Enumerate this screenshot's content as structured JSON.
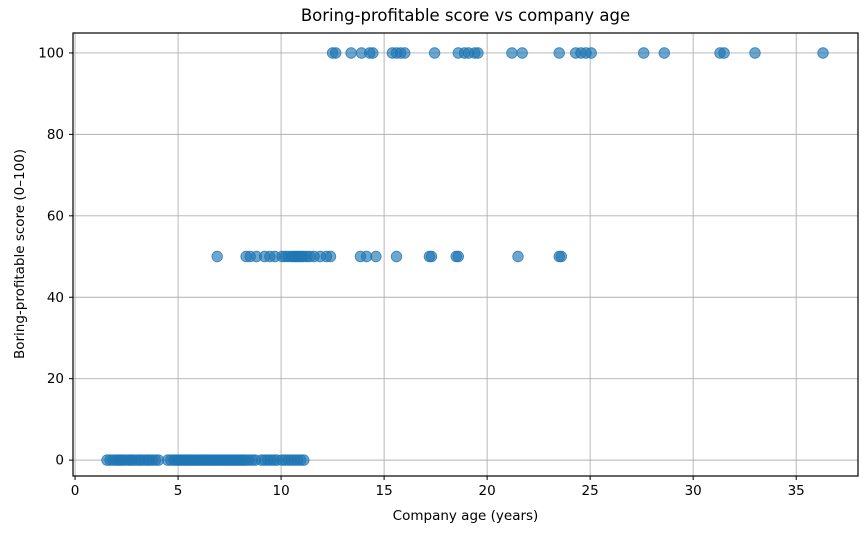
{
  "chart_data": {
    "type": "scatter",
    "title": "Boring-profitable score vs company age",
    "xlabel": "Company age (years)",
    "ylabel": "Boring-profitable score (0–100)",
    "xlim": [
      -0.1,
      38.0
    ],
    "ylim": [
      -3.9,
      104.9
    ],
    "xticks": [
      0,
      5,
      10,
      15,
      20,
      25,
      30,
      35
    ],
    "yticks": [
      0,
      20,
      40,
      60,
      80,
      100
    ],
    "grid": true,
    "legend": "none",
    "marker_color": "#1f77b4",
    "marker_alpha": 0.65,
    "marker_radius": 5.3,
    "grid_color": "#b0b0b0",
    "spine_color": "#000000",
    "series": [
      {
        "name": "score-0",
        "y": 0,
        "x": [
          1.55,
          1.7,
          1.85,
          2.0,
          2.1,
          2.2,
          2.3,
          2.45,
          2.6,
          2.7,
          2.8,
          2.95,
          3.1,
          3.2,
          3.35,
          3.5,
          3.6,
          3.75,
          3.9,
          4.05,
          4.5,
          4.65,
          4.8,
          4.9,
          5.0,
          5.1,
          5.2,
          5.3,
          5.4,
          5.5,
          5.6,
          5.7,
          5.8,
          5.9,
          6.0,
          6.1,
          6.2,
          6.3,
          6.4,
          6.5,
          6.6,
          6.7,
          6.8,
          6.9,
          7.0,
          7.1,
          7.2,
          7.3,
          7.4,
          7.5,
          7.6,
          7.7,
          7.8,
          7.9,
          8.0,
          8.1,
          8.2,
          8.3,
          8.45,
          8.6,
          8.75,
          9.05,
          9.2,
          9.35,
          9.5,
          9.65,
          9.8,
          10.05,
          10.2,
          10.35,
          10.5,
          10.65,
          10.8,
          10.95,
          11.1
        ]
      },
      {
        "name": "score-50",
        "y": 50,
        "x": [
          6.9,
          8.3,
          8.5,
          8.8,
          9.2,
          9.45,
          9.7,
          10.05,
          10.2,
          10.35,
          10.5,
          10.6,
          10.7,
          10.8,
          10.9,
          11.0,
          11.1,
          11.25,
          11.4,
          11.6,
          11.9,
          12.2,
          12.4,
          13.85,
          14.15,
          14.6,
          15.6,
          17.2,
          17.3,
          18.5,
          18.6,
          21.5,
          23.5,
          23.6
        ]
      },
      {
        "name": "score-100",
        "y": 100,
        "x": [
          12.5,
          12.65,
          13.4,
          13.9,
          14.3,
          14.45,
          15.4,
          15.6,
          15.8,
          16.0,
          17.45,
          18.6,
          18.9,
          19.1,
          19.4,
          19.55,
          21.2,
          21.7,
          23.5,
          24.3,
          24.55,
          24.8,
          25.05,
          27.6,
          28.6,
          31.3,
          31.5,
          33.0,
          36.3
        ]
      }
    ]
  }
}
